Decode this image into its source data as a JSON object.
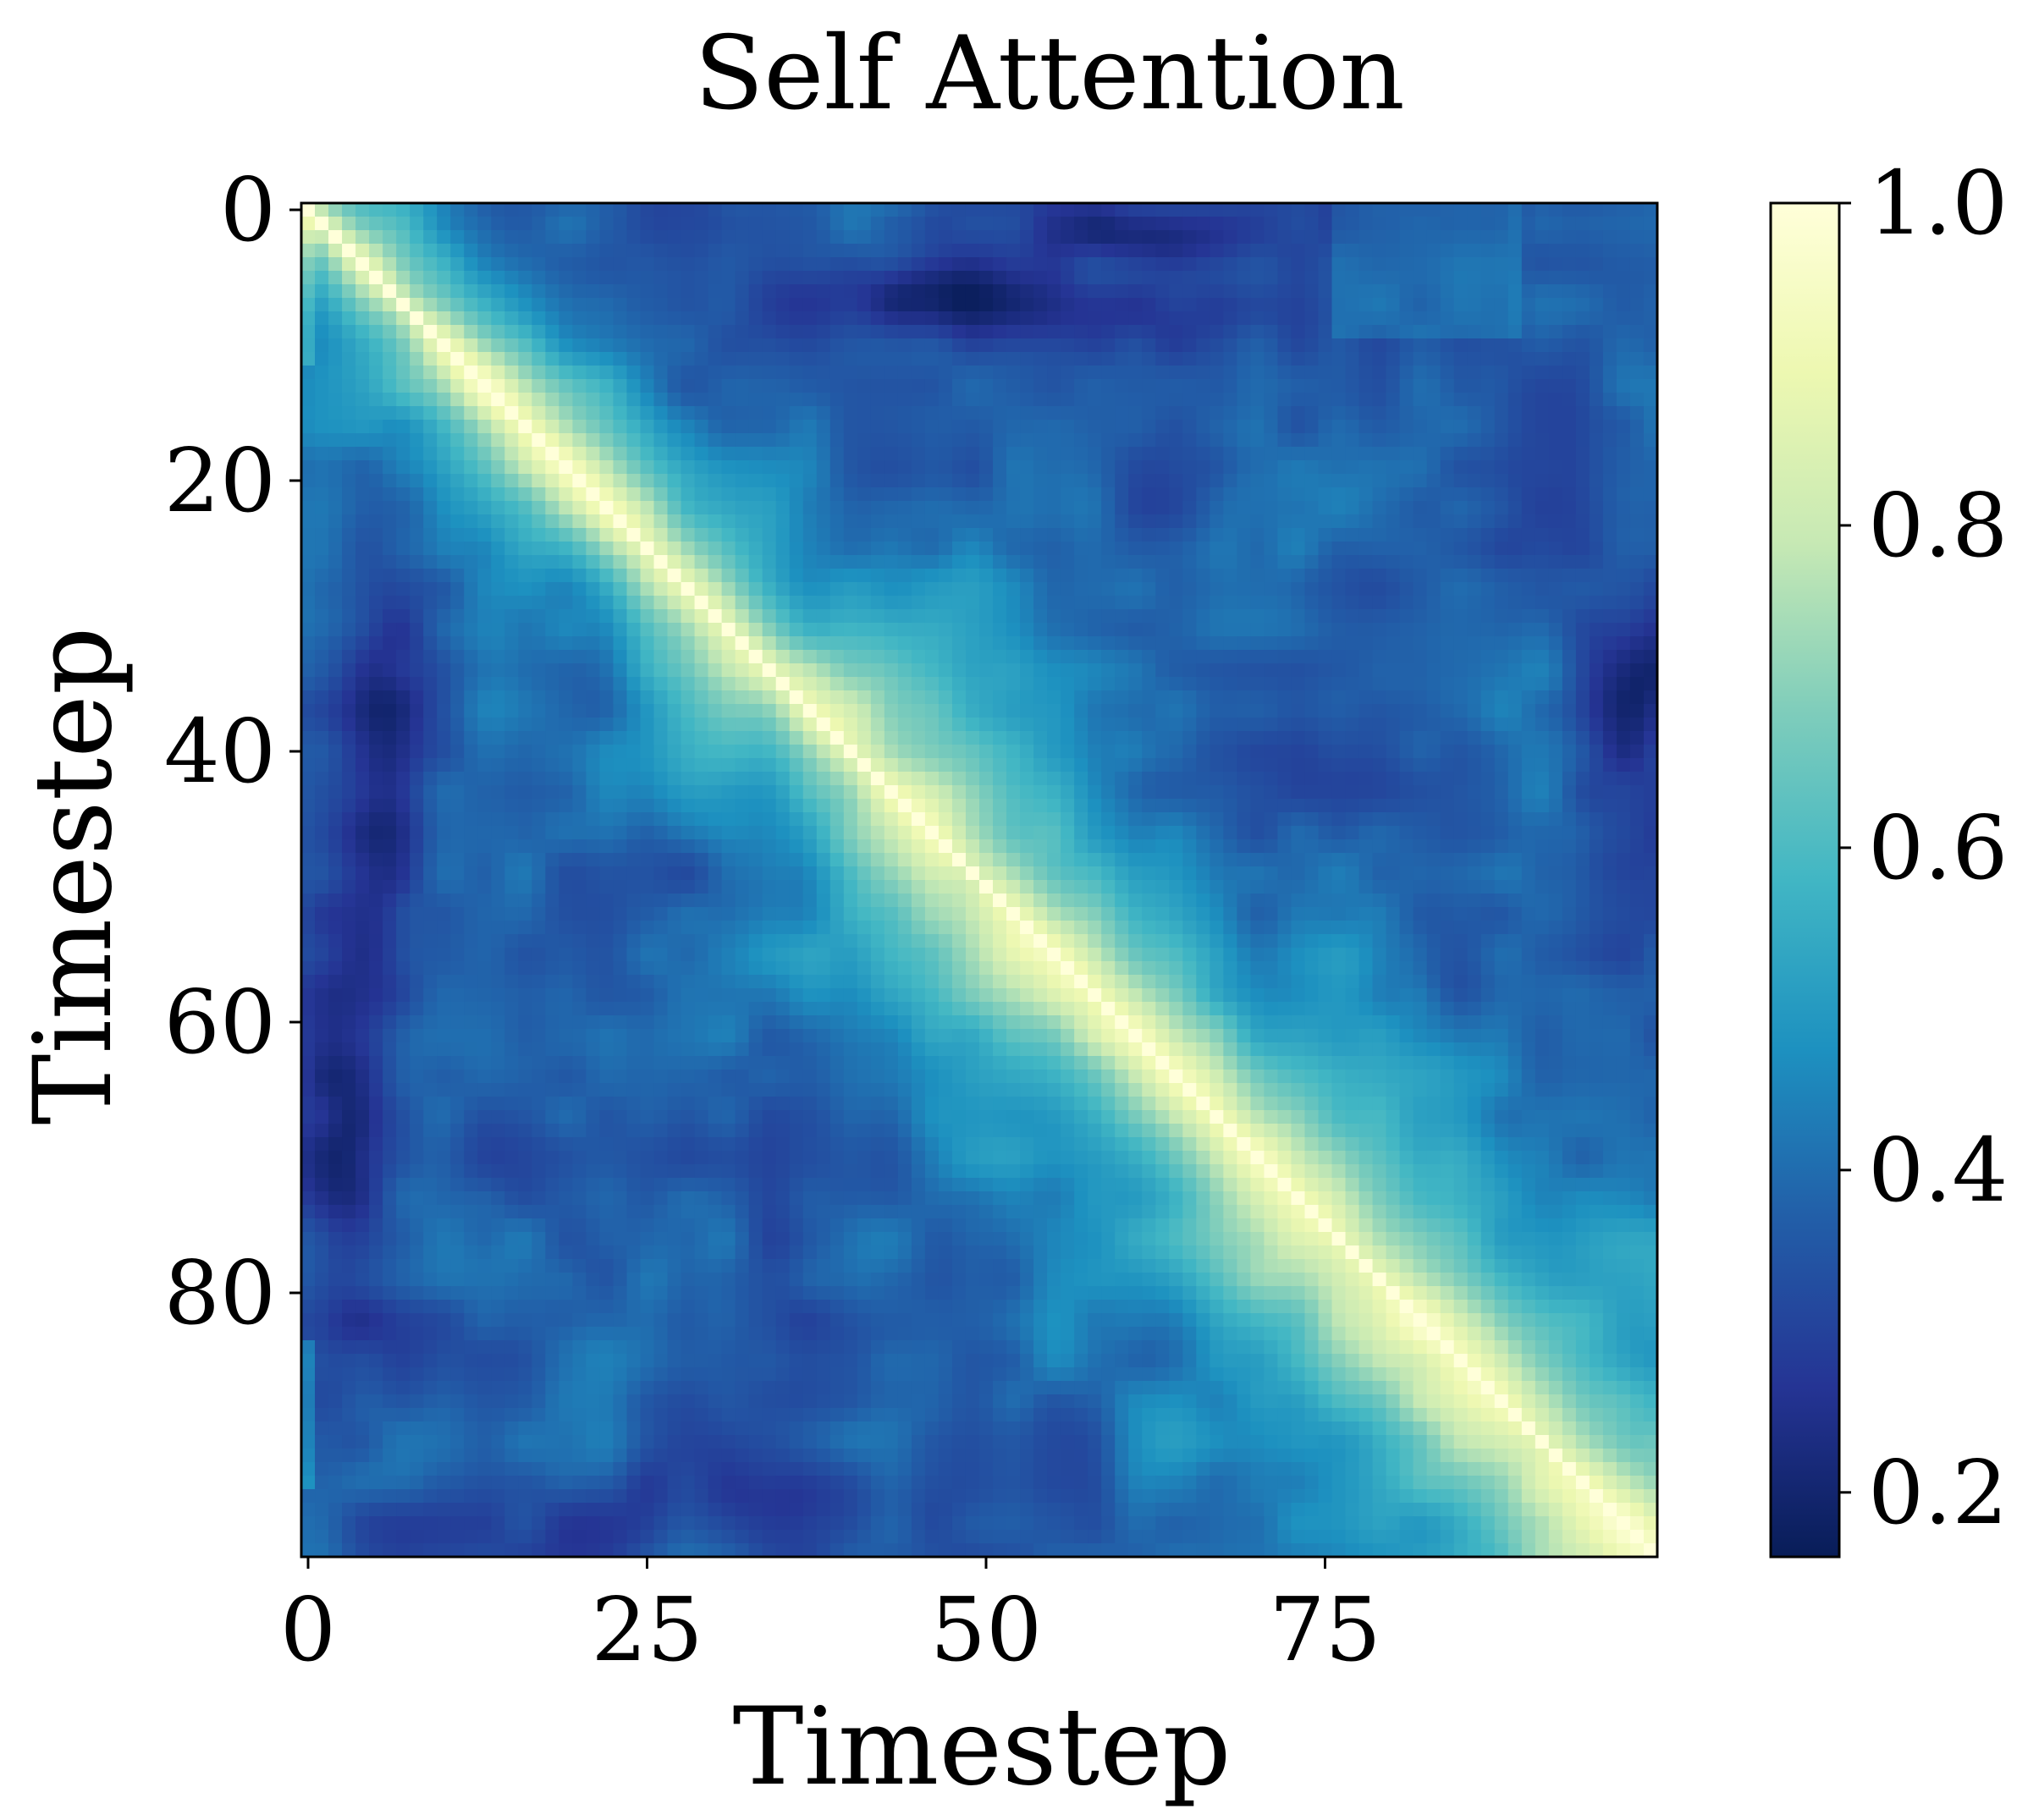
{
  "chart_data": {
    "type": "heatmap",
    "title": "Self Attention",
    "xlabel": "Timestep",
    "ylabel": "Timestep",
    "rows": 100,
    "cols": 100,
    "x_ticks": [
      {
        "value": 0,
        "label": "0"
      },
      {
        "value": 25,
        "label": "25"
      },
      {
        "value": 50,
        "label": "50"
      },
      {
        "value": 75,
        "label": "75"
      }
    ],
    "y_ticks": [
      {
        "value": 0,
        "label": "0"
      },
      {
        "value": 20,
        "label": "20"
      },
      {
        "value": 40,
        "label": "40"
      },
      {
        "value": 60,
        "label": "60"
      },
      {
        "value": 80,
        "label": "80"
      }
    ],
    "colorbar": {
      "colormap": "YlGnBu_r",
      "range": [
        0.16,
        1.0
      ],
      "ticks": [
        {
          "value": 0.2,
          "label": "0.2"
        },
        {
          "value": 0.4,
          "label": "0.4"
        },
        {
          "value": 0.6,
          "label": "0.6"
        },
        {
          "value": 0.8,
          "label": "0.8"
        },
        {
          "value": 1.0,
          "label": "1.0"
        }
      ],
      "stops": [
        "#081d58",
        "#253494",
        "#225ea8",
        "#1d91c0",
        "#41b6c4",
        "#7fcdbb",
        "#c7e9b4",
        "#edf8b1",
        "#ffffd9"
      ]
    },
    "values_description_keys": {
      "diagonal": 1.0
    }
  }
}
